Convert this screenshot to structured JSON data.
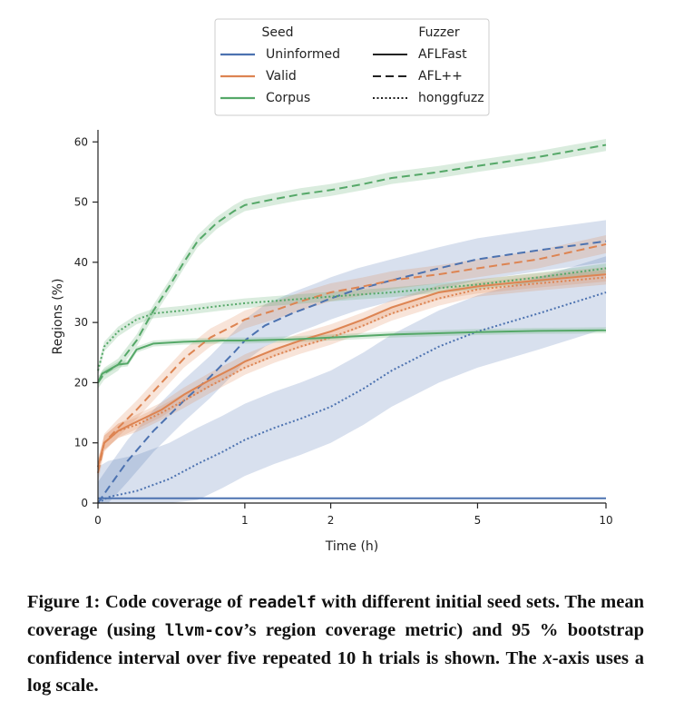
{
  "chart_data": {
    "type": "line",
    "xlabel": "Time (h)",
    "ylabel": "Regions (%)",
    "x_scale": "log",
    "x_ticks": [
      "0",
      "1",
      "2",
      "5",
      "10"
    ],
    "x_tick_values": [
      0,
      1,
      2,
      5,
      10
    ],
    "y_ticks": [
      "0",
      "10",
      "20",
      "30",
      "40",
      "50",
      "60"
    ],
    "y_tick_values": [
      0,
      10,
      20,
      30,
      40,
      50,
      60
    ],
    "xlim": [
      0,
      10
    ],
    "ylim": [
      0,
      62
    ],
    "grid": false,
    "legend": {
      "placement": "top-center",
      "seed_title": "Seed",
      "fuzzer_title": "Fuzzer",
      "seeds": [
        {
          "label": "Uninformed",
          "color": "#4c72b0"
        },
        {
          "label": "Valid",
          "color": "#dd8452"
        },
        {
          "label": "Corpus",
          "color": "#55a868"
        }
      ],
      "fuzzers": [
        {
          "label": "AFLFast",
          "dash": "solid"
        },
        {
          "label": "AFL++",
          "dash": "dashed"
        },
        {
          "label": "honggfuzz",
          "dash": "dotted"
        }
      ]
    },
    "series": [
      {
        "seed": "Uninformed",
        "fuzzer": "AFLFast",
        "color": "#4c72b0",
        "dash": "solid",
        "x": [
          0,
          10
        ],
        "y": [
          0.8,
          0.8
        ],
        "band": 0
      },
      {
        "seed": "Uninformed",
        "fuzzer": "AFL++",
        "color": "#4c72b0",
        "dash": "dashed",
        "x": [
          0,
          0.05,
          0.15,
          0.3,
          0.5,
          0.7,
          0.9,
          1.0,
          1.2,
          1.5,
          1.8,
          2.0,
          2.4,
          3,
          4,
          5,
          7,
          10
        ],
        "y": [
          0,
          2.5,
          7,
          12,
          17,
          21,
          25,
          27,
          29.5,
          31.5,
          33,
          34,
          35.5,
          37,
          39,
          40.5,
          42,
          43.5
        ],
        "band": 3.5
      },
      {
        "seed": "Uninformed",
        "fuzzer": "honggfuzz",
        "color": "#4c72b0",
        "dash": "dotted",
        "x": [
          0,
          0.05,
          0.2,
          0.4,
          0.6,
          0.8,
          1.0,
          1.3,
          1.6,
          2.0,
          2.5,
          3,
          4,
          5,
          7,
          10
        ],
        "y": [
          0,
          1,
          2,
          4,
          6.5,
          8.5,
          10.5,
          12.5,
          14,
          16,
          19,
          22,
          26,
          28.5,
          31.5,
          35
        ],
        "band": 6
      },
      {
        "seed": "Valid",
        "fuzzer": "AFLFast",
        "color": "#dd8452",
        "dash": "solid",
        "x": [
          0,
          0.03,
          0.1,
          0.2,
          0.35,
          0.5,
          0.7,
          0.9,
          1.0,
          1.3,
          1.6,
          2.0,
          2.5,
          3,
          4,
          5,
          7,
          10
        ],
        "y": [
          6,
          10,
          12,
          13.5,
          15.5,
          18,
          20.5,
          22.5,
          23.5,
          25.5,
          27,
          28.5,
          30.5,
          32.5,
          35,
          36,
          37,
          38
        ],
        "band": 1.2
      },
      {
        "seed": "Valid",
        "fuzzer": "AFL++",
        "color": "#dd8452",
        "dash": "dashed",
        "x": [
          0,
          0.03,
          0.1,
          0.2,
          0.35,
          0.5,
          0.7,
          0.9,
          1.0,
          1.3,
          1.6,
          2.0,
          2.5,
          3,
          4,
          5,
          7,
          10
        ],
        "y": [
          5,
          10,
          12.5,
          15.5,
          20,
          24,
          27.5,
          29.5,
          30.5,
          32,
          33.5,
          35,
          36,
          37,
          38,
          39,
          40.5,
          43
        ],
        "band": 1.5
      },
      {
        "seed": "Valid",
        "fuzzer": "honggfuzz",
        "color": "#dd8452",
        "dash": "dotted",
        "x": [
          0,
          0.03,
          0.1,
          0.2,
          0.35,
          0.5,
          0.7,
          0.9,
          1.0,
          1.3,
          1.6,
          2.0,
          2.5,
          3,
          4,
          5,
          7,
          10
        ],
        "y": [
          6,
          10,
          12,
          13,
          15,
          17,
          19.5,
          21.5,
          22.5,
          24.5,
          26,
          27.5,
          29.5,
          31.5,
          34,
          35.5,
          36.5,
          37.5
        ],
        "band": 1.2
      },
      {
        "seed": "Corpus",
        "fuzzer": "AFLFast",
        "color": "#55a868",
        "dash": "solid",
        "x": [
          0,
          0.02,
          0.1,
          0.15,
          0.2,
          0.3,
          0.5,
          0.8,
          1.0,
          1.5,
          2.0,
          3,
          5,
          7,
          10
        ],
        "y": [
          20,
          21.5,
          23,
          23.2,
          25.5,
          26.5,
          26.8,
          27,
          27,
          27.2,
          27.5,
          28,
          28.4,
          28.6,
          28.7
        ],
        "band": 0.5
      },
      {
        "seed": "Corpus",
        "fuzzer": "AFL++",
        "color": "#55a868",
        "dash": "dashed",
        "x": [
          0,
          0.03,
          0.1,
          0.2,
          0.3,
          0.4,
          0.5,
          0.6,
          0.75,
          0.9,
          1.0,
          1.3,
          1.6,
          2.0,
          2.5,
          3,
          4,
          5,
          7,
          10
        ],
        "y": [
          20,
          21.5,
          23,
          27,
          32,
          36,
          40,
          43.5,
          46.5,
          48.5,
          49.5,
          50.5,
          51.3,
          52,
          53,
          54,
          55,
          56,
          57.5,
          59.5
        ],
        "band": 1.0
      },
      {
        "seed": "Corpus",
        "fuzzer": "honggfuzz",
        "color": "#55a868",
        "dash": "dotted",
        "x": [
          0,
          0.03,
          0.1,
          0.2,
          0.3,
          0.5,
          0.8,
          1.0,
          1.5,
          2.0,
          3,
          5,
          7,
          10
        ],
        "y": [
          22,
          26,
          28.5,
          30.5,
          31.5,
          32,
          32.8,
          33.2,
          33.8,
          34.3,
          35,
          36.3,
          37.5,
          39
        ],
        "band": 0.8
      }
    ]
  },
  "caption": {
    "figure_label": "Figure 1:",
    "part1": " Code coverage of ",
    "code1": "readelf",
    "part2": " with different initial seed sets. The mean coverage (using ",
    "code2": "llvm-cov",
    "part3": "’s region coverage metric) and 95 % bootstrap confidence interval over five repeated 10 h trials is shown. The ",
    "italic": "x",
    "part4": "-axis uses a log scale."
  }
}
